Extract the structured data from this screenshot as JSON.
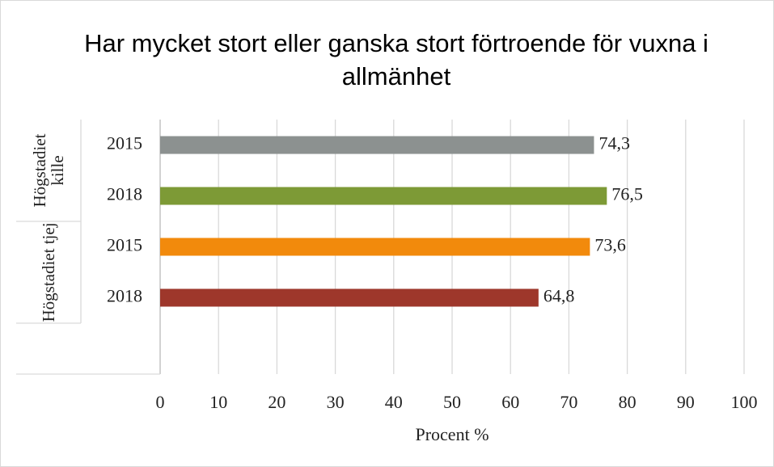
{
  "chart_data": {
    "type": "bar",
    "orientation": "horizontal",
    "title": "Har mycket stort eller ganska stort förtroende för vuxna i allmänhet",
    "x_label": "Procent %",
    "groups": [
      {
        "name": "Högstadiet kille",
        "categories": [
          "2015",
          "2018"
        ],
        "values": [
          74.3,
          76.5
        ],
        "value_labels": [
          "74,3",
          "76,5"
        ],
        "colors": [
          "#8c9190",
          "#7d9a36"
        ]
      },
      {
        "name": "Högstadiet tjej",
        "categories": [
          "2015",
          "2018"
        ],
        "values": [
          73.6,
          64.8
        ],
        "value_labels": [
          "73,6",
          "64,8"
        ],
        "colors": [
          "#f28a0c",
          "#9e372b"
        ]
      }
    ],
    "xlim": [
      0,
      100
    ],
    "xticks": [
      0,
      10,
      20,
      30,
      40,
      50,
      60,
      70,
      80,
      90,
      100
    ],
    "grid": true
  }
}
